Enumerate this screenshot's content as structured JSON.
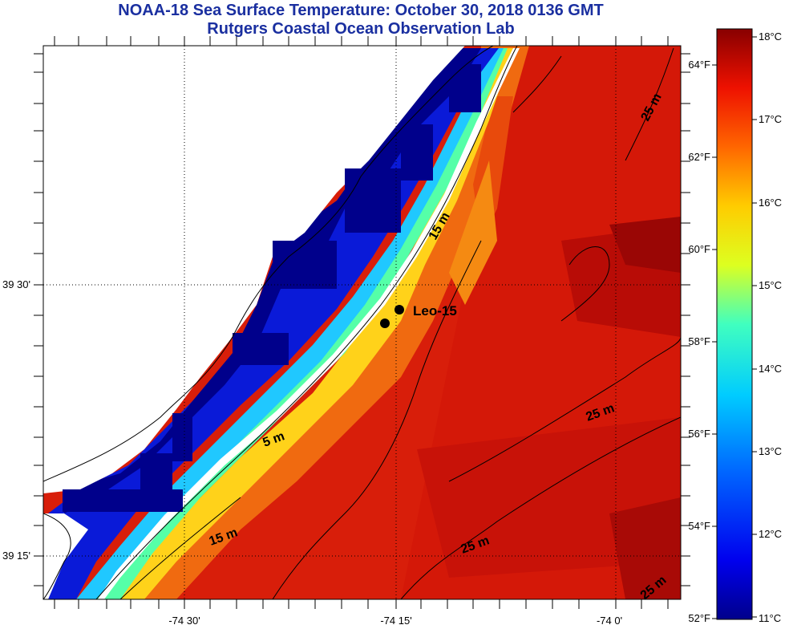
{
  "title": "NOAA-18 Sea Surface Temperature:  October 30, 2018 0136 GMT",
  "subtitle": "Rutgers Coastal Ocean Observation Lab",
  "x_ticks": [
    "-74 30'",
    "-74 15'",
    "-74 0'"
  ],
  "y_ticks": [
    "39 30'",
    "39 15'"
  ],
  "colorbar": {
    "celsius": [
      "18°C",
      "17°C",
      "16°C",
      "15°C",
      "14°C",
      "13°C",
      "12°C",
      "11°C"
    ],
    "fahrenheit": [
      "64°F",
      "62°F",
      "60°F",
      "58°F",
      "56°F",
      "54°F",
      "52°F"
    ]
  },
  "station": {
    "name": "Leo-15"
  },
  "contours": [
    "25 m",
    "15 m",
    "25 m",
    "25 m",
    "5 m",
    "15 m",
    "25 m"
  ]
}
